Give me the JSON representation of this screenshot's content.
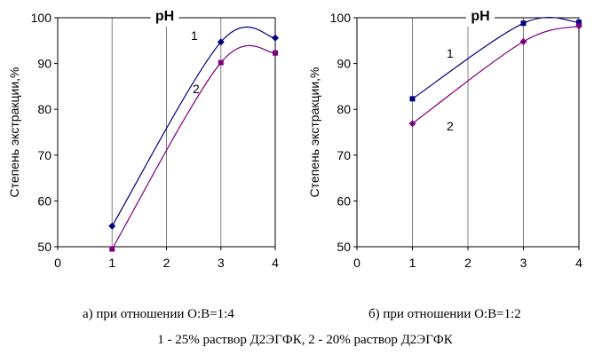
{
  "captions": {
    "panel_a": "а) при отношении О:В=1:4",
    "panel_b": "б) при отношении О:В=1:2",
    "legend": "1 - 25% раствор Д2ЭГФК, 2 - 20% раствор Д2ЭГФК"
  },
  "colors": {
    "series_1": "#000080",
    "series_2": "#800080",
    "axis": "#000000",
    "grid": "#808080"
  },
  "chart_data": [
    {
      "id": "a",
      "type": "line",
      "title": "pH",
      "xlabel": "",
      "ylabel": "Степень экстракции,%",
      "xlim": [
        0,
        4
      ],
      "ylim": [
        50,
        100
      ],
      "xticks": [
        "0",
        "1",
        "2",
        "3",
        "4"
      ],
      "yticks": [
        "50",
        "60",
        "70",
        "80",
        "90",
        "100"
      ],
      "grid": "vertical",
      "series": [
        {
          "name": "1",
          "marker": "diamond",
          "x": [
            1,
            3,
            4
          ],
          "y": [
            54.5,
            94.7,
            95.6
          ]
        },
        {
          "name": "2",
          "marker": "square",
          "x": [
            1,
            3,
            4
          ],
          "y": [
            49.5,
            90.2,
            92.3
          ]
        }
      ]
    },
    {
      "id": "b",
      "type": "line",
      "title": "pH",
      "xlabel": "",
      "ylabel": "Степень экстракции,%",
      "xlim": [
        0,
        4
      ],
      "ylim": [
        50,
        100
      ],
      "xticks": [
        "0",
        "1",
        "2",
        "3",
        "4"
      ],
      "yticks": [
        "50",
        "60",
        "70",
        "80",
        "90",
        "100"
      ],
      "grid": "vertical",
      "series": [
        {
          "name": "1",
          "marker": "square",
          "x": [
            1,
            3,
            4
          ],
          "y": [
            82.3,
            98.8,
            99.0
          ]
        },
        {
          "name": "2",
          "marker": "diamond",
          "x": [
            1,
            3,
            4
          ],
          "y": [
            76.9,
            94.8,
            98.2
          ]
        }
      ]
    }
  ]
}
